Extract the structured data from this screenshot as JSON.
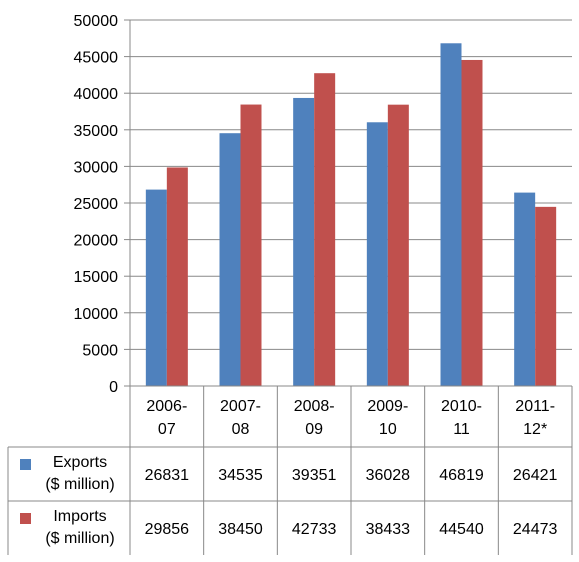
{
  "chart_data": {
    "type": "bar",
    "categories": [
      [
        "2006-",
        "07"
      ],
      [
        "2007-",
        "08"
      ],
      [
        "2008-",
        "09"
      ],
      [
        "2009-",
        "10"
      ],
      [
        "2010-",
        "11"
      ],
      [
        "2011-",
        "12*"
      ]
    ],
    "series": [
      {
        "name": [
          "Exports",
          "($ million)"
        ],
        "color": "#4f81bd",
        "values": [
          26831,
          34535,
          39351,
          36028,
          46819,
          26421
        ],
        "labels": [
          "26831",
          "34535",
          "39351",
          "36028",
          "46819",
          "26421"
        ]
      },
      {
        "name": [
          "Imports",
          "($ million)"
        ],
        "color": "#c0504d",
        "values": [
          29856,
          38450,
          42733,
          38433,
          44540,
          24473
        ],
        "labels": [
          "29856",
          "38450",
          "42733",
          "38433",
          "44540",
          "24473"
        ]
      }
    ],
    "yticks": [
      "0",
      "5000",
      "10000",
      "15000",
      "20000",
      "25000",
      "30000",
      "35000",
      "40000",
      "45000",
      "50000"
    ],
    "ylim": [
      0,
      50000
    ],
    "grid": true,
    "legend": "data table"
  }
}
